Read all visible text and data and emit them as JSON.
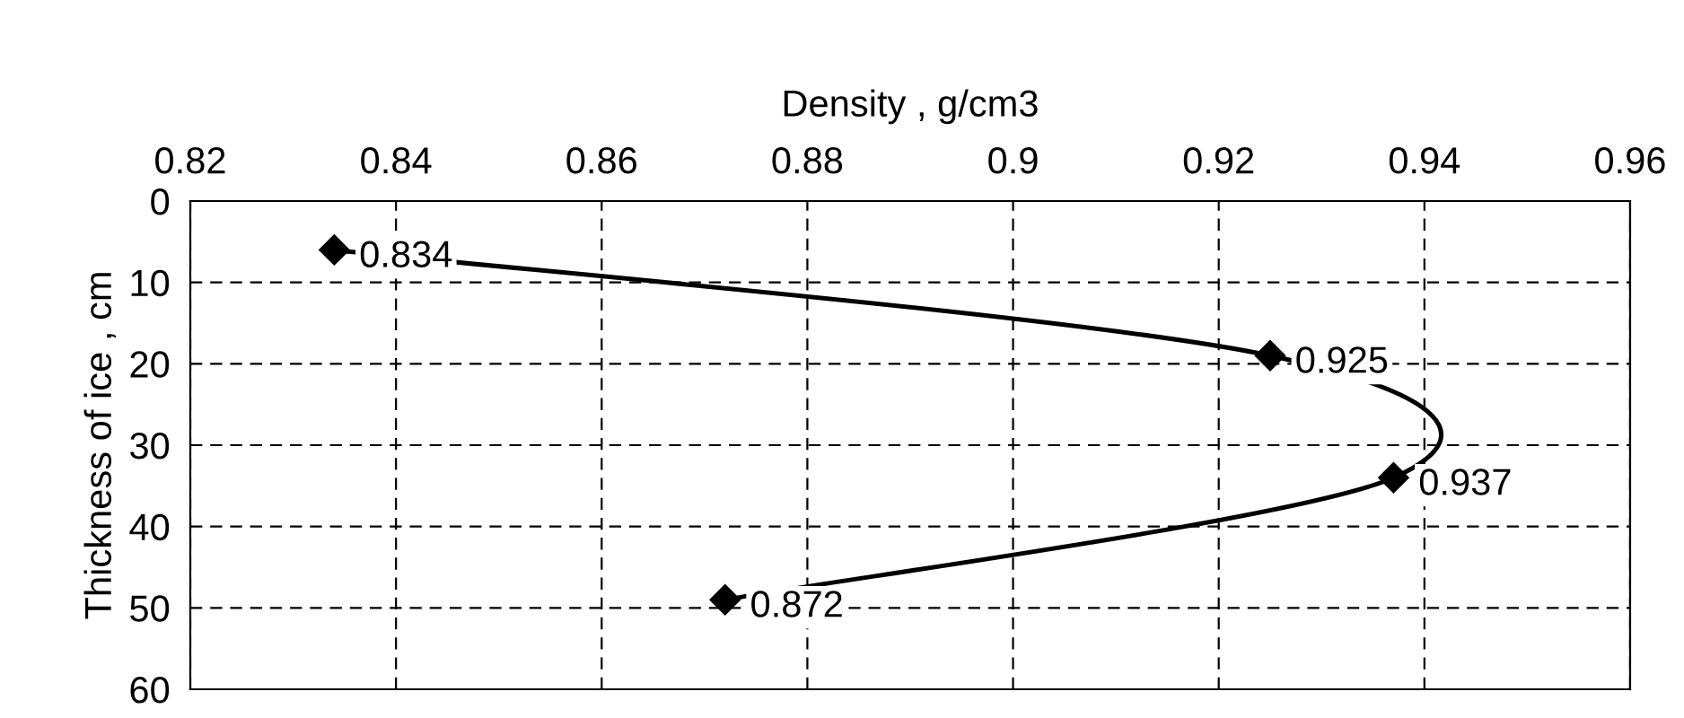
{
  "chart_data": {
    "type": "line",
    "orientation": "horizontal",
    "xlabel": "Density , g/cm3",
    "ylabel": "Thickness of ice , cm",
    "x": [
      6,
      19,
      34,
      49
    ],
    "series": [
      {
        "color": "#000000",
        "values": [
          0.834,
          0.925,
          0.937,
          0.872
        ]
      }
    ],
    "data_labels": true,
    "xlim": [
      0.82,
      0.96
    ],
    "xticks": [
      0.82,
      0.84,
      0.86,
      0.88,
      0.9,
      0.92,
      0.94,
      0.96
    ],
    "ylim": [
      60,
      0
    ],
    "yticks": [
      0,
      10,
      20,
      30,
      40,
      50,
      60
    ],
    "grid": true,
    "marker": "diamond",
    "line_style": "solid"
  }
}
